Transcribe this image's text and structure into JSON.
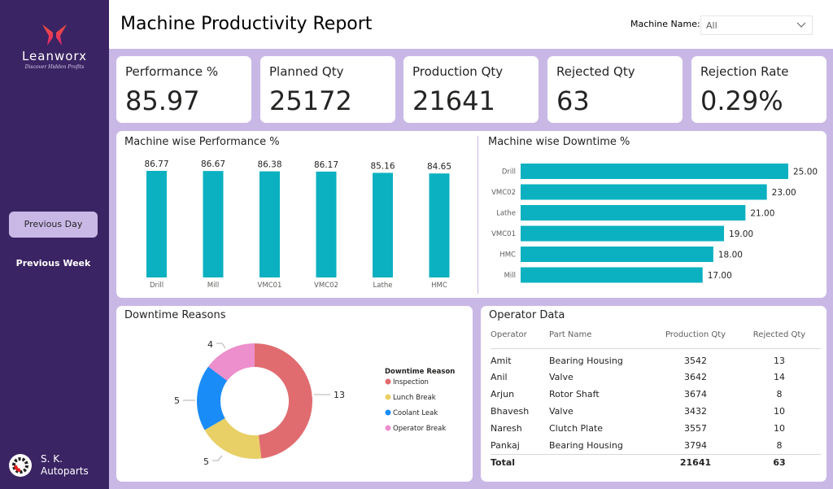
{
  "brand": {
    "name": "Leanworx",
    "tagline": "Discover Hidden Profits"
  },
  "nav": {
    "previous_day": "Previous Day",
    "previous_week": "Previous Week"
  },
  "company": {
    "line1": "S. K.",
    "line2": "Autoparts"
  },
  "header": {
    "title": "Machine Productivity Report",
    "filter_label": "Machine Name:",
    "filter_value": "All"
  },
  "kpis": [
    {
      "label": "Performance %",
      "value": "85.97"
    },
    {
      "label": "Planned Qty",
      "value": "25172"
    },
    {
      "label": "Production Qty",
      "value": "21641"
    },
    {
      "label": "Rejected Qty",
      "value": "63"
    },
    {
      "label": "Rejection Rate",
      "value": "0.29%"
    }
  ],
  "colors": {
    "bar": "#0bb1c0",
    "inspection": "#e06c70",
    "lunch": "#e8cf66",
    "coolant": "#1a8cf8",
    "operator": "#ec8fcc",
    "accent": "#c9b8e6",
    "sidebar": "#3b2463"
  },
  "chart_data": [
    {
      "type": "bar",
      "title": "Machine wise Performance %",
      "categories": [
        "Drill",
        "Mill",
        "VMC01",
        "VMC02",
        "Lathe",
        "HMC"
      ],
      "values": [
        86.77,
        86.67,
        86.38,
        86.17,
        85.16,
        84.65
      ],
      "value_labels": [
        "86.77",
        "86.67",
        "86.38",
        "86.17",
        "85.16",
        "84.65"
      ],
      "ylim": [
        0,
        90
      ],
      "grid": false
    },
    {
      "type": "bar",
      "orientation": "horizontal",
      "title": "Machine wise Downtime %",
      "categories": [
        "Drill",
        "VMC02",
        "Lathe",
        "VMC01",
        "HMC",
        "Mill"
      ],
      "values": [
        25,
        23,
        21,
        19,
        18,
        17
      ],
      "value_labels": [
        "25.00",
        "23.00",
        "21.00",
        "19.00",
        "18.00",
        "17.00"
      ],
      "xlim": [
        0,
        25
      ],
      "grid": false
    },
    {
      "type": "pie",
      "subtype": "donut",
      "title": "Downtime Reasons",
      "legend_title": "Downtime Reason",
      "legend_position": "right",
      "labels": [
        "Inspection",
        "Lunch Break",
        "Coolant Leak",
        "Operator Break"
      ],
      "values": [
        13,
        5,
        5,
        4
      ],
      "value_labels": [
        "13",
        "5",
        "5",
        "4"
      ]
    }
  ],
  "operator_table": {
    "title": "Operator Data",
    "columns": [
      "Operator",
      "Part Name",
      "Production Qty",
      "Rejected Qty"
    ],
    "rows": [
      {
        "operator": "Amit",
        "part": "Bearing Housing",
        "production": "3542",
        "rejected": "13"
      },
      {
        "operator": "Anil",
        "part": "Valve",
        "production": "3642",
        "rejected": "14"
      },
      {
        "operator": "Arjun",
        "part": "Rotor Shaft",
        "production": "3674",
        "rejected": "8"
      },
      {
        "operator": "Bhavesh",
        "part": "Valve",
        "production": "3432",
        "rejected": "10"
      },
      {
        "operator": "Naresh",
        "part": "Clutch Plate",
        "production": "3557",
        "rejected": "10"
      },
      {
        "operator": "Pankaj",
        "part": "Bearing Housing",
        "production": "3794",
        "rejected": "8"
      }
    ],
    "total": {
      "label": "Total",
      "production": "21641",
      "rejected": "63"
    }
  }
}
